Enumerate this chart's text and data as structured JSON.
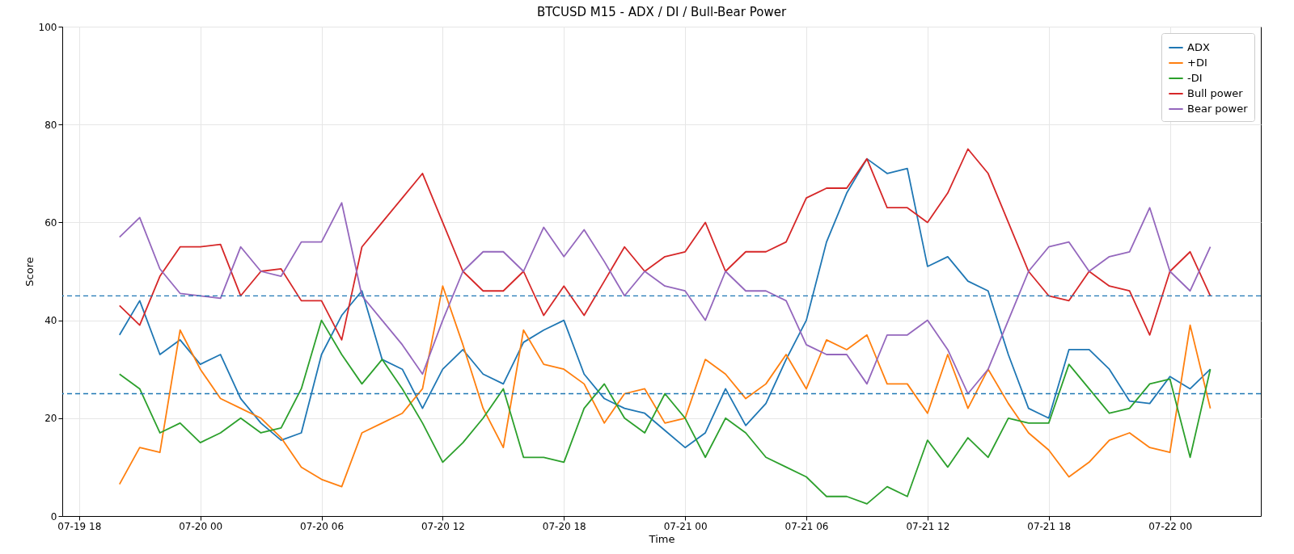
{
  "chart_data": {
    "type": "line",
    "title": "BTCUSD M15 - ADX / DI / Bull-Bear Power",
    "xlabel": "Time",
    "ylabel": "Score",
    "x": [
      "--07-19T20:00",
      "--07-19T21:00",
      "--07-19T22:00",
      "--07-19T23:00",
      "--07-20T00:00",
      "--07-20T01:00",
      "--07-20T02:00",
      "--07-20T03:00",
      "--07-20T04:00",
      "--07-20T05:00",
      "--07-20T06:00",
      "--07-20T07:00",
      "--07-20T08:00",
      "--07-20T09:00",
      "--07-20T10:00",
      "--07-20T11:00",
      "--07-20T12:00",
      "--07-20T13:00",
      "--07-20T14:00",
      "--07-20T15:00",
      "--07-20T16:00",
      "--07-20T17:00",
      "--07-20T18:00",
      "--07-20T19:00",
      "--07-20T20:00",
      "--07-20T21:00",
      "--07-20T22:00",
      "--07-20T23:00",
      "--07-21T00:00",
      "--07-21T01:00",
      "--07-21T02:00",
      "--07-21T03:00",
      "--07-21T04:00",
      "--07-21T05:00",
      "--07-21T06:00",
      "--07-21T07:00",
      "--07-21T08:00",
      "--07-21T09:00",
      "--07-21T10:00",
      "--07-21T11:00",
      "--07-21T12:00",
      "--07-21T13:00",
      "--07-21T14:00",
      "--07-21T15:00",
      "--07-21T16:00",
      "--07-21T17:00",
      "--07-21T18:00",
      "--07-21T19:00",
      "--07-21T20:00",
      "--07-21T21:00",
      "--07-21T22:00",
      "--07-21T23:00",
      "--07-22T00:00",
      "--07-22T01:00",
      "--07-22T02:00"
    ],
    "series": [
      {
        "name": "ADX",
        "color": "#1f77b4",
        "values": [
          37,
          44,
          33,
          36,
          31,
          33,
          24,
          19,
          15.5,
          17,
          33,
          41,
          46,
          32,
          30,
          22,
          30,
          34,
          29,
          27,
          35.5,
          38,
          40,
          29,
          24,
          22,
          21,
          17.5,
          14,
          17,
          26,
          18.5,
          23,
          32,
          40,
          56,
          66,
          73,
          70,
          71,
          51,
          53,
          48,
          46,
          33,
          22,
          20,
          34,
          34,
          30,
          23.5,
          23,
          28.5,
          26,
          30
        ]
      },
      {
        "name": "+DI",
        "color": "#ff7f0e",
        "values": [
          6.5,
          14,
          13,
          38,
          30,
          24,
          22,
          20,
          16,
          10,
          7.5,
          6,
          17,
          19,
          21,
          26,
          47,
          35,
          22,
          14,
          38,
          31,
          30,
          27,
          19,
          25,
          26,
          19,
          20,
          32,
          29,
          24,
          27,
          33,
          26,
          36,
          34,
          37,
          27,
          27,
          21,
          33,
          22,
          30,
          23,
          17,
          13.5,
          8,
          11,
          15.5,
          17,
          14,
          13,
          39,
          22
        ]
      },
      {
        "name": "-DI",
        "color": "#2ca02c",
        "values": [
          29,
          26,
          17,
          19,
          15,
          17,
          20,
          17,
          18,
          26,
          40,
          33,
          27,
          32,
          26,
          19,
          11,
          15,
          20,
          26,
          12,
          12,
          11,
          22,
          27,
          20,
          17,
          25,
          20,
          12,
          20,
          17,
          12,
          10,
          8,
          4,
          4,
          2.5,
          6,
          4,
          15.5,
          10,
          16,
          12,
          20,
          19,
          19,
          31,
          26,
          21,
          22,
          27,
          28,
          12,
          30
        ]
      },
      {
        "name": "Bull power",
        "color": "#d62728",
        "values": [
          43,
          39,
          49,
          55,
          55,
          55.5,
          45,
          50,
          50.5,
          44,
          44,
          36,
          55,
          60,
          65,
          70,
          60,
          50,
          46,
          46,
          50,
          41,
          47,
          41,
          48,
          55,
          50,
          53,
          54,
          60,
          50,
          54,
          54,
          56,
          65,
          67,
          67,
          73,
          63,
          63,
          60,
          66,
          75,
          70,
          60,
          50,
          45,
          44,
          50,
          47,
          46,
          37,
          50,
          54,
          45
        ]
      },
      {
        "name": "Bear power",
        "color": "#9467bd",
        "values": [
          57,
          61,
          50.5,
          45.5,
          45,
          44.5,
          55,
          50,
          49,
          56,
          56,
          64,
          45,
          40,
          35,
          29,
          40,
          50,
          54,
          54,
          50,
          59,
          53,
          58.5,
          52,
          45,
          50,
          47,
          46,
          40,
          50,
          46,
          46,
          44,
          35,
          33,
          33,
          27,
          37,
          37,
          40,
          34,
          25,
          30,
          40,
          50,
          55,
          56,
          50,
          53,
          54,
          63,
          50,
          46,
          55
        ]
      }
    ],
    "xlim": [
      "--07-19T17:10",
      "--07-22T04:30"
    ],
    "xticks": [
      {
        "value": "--07-19T18:00",
        "label": "07-19 18"
      },
      {
        "value": "--07-20T00:00",
        "label": "07-20 00"
      },
      {
        "value": "--07-20T06:00",
        "label": "07-20 06"
      },
      {
        "value": "--07-20T12:00",
        "label": "07-20 12"
      },
      {
        "value": "--07-20T18:00",
        "label": "07-20 18"
      },
      {
        "value": "--07-21T00:00",
        "label": "07-21 00"
      },
      {
        "value": "--07-21T06:00",
        "label": "07-21 06"
      },
      {
        "value": "--07-21T12:00",
        "label": "07-21 12"
      },
      {
        "value": "--07-21T18:00",
        "label": "07-21 18"
      },
      {
        "value": "--07-22T00:00",
        "label": "07-22 00"
      }
    ],
    "ylim": [
      0,
      100
    ],
    "yticks": [
      0,
      20,
      40,
      60,
      80,
      100
    ],
    "ref_lines": [
      {
        "axis": "y",
        "value": 45,
        "color": "#1f77b4",
        "line_style": "dashed"
      },
      {
        "axis": "y",
        "value": 25,
        "color": "#1f77b4",
        "line_style": "dashed"
      }
    ],
    "grid": true,
    "legend": "top right",
    "line_style": "solid",
    "marker": "none"
  }
}
